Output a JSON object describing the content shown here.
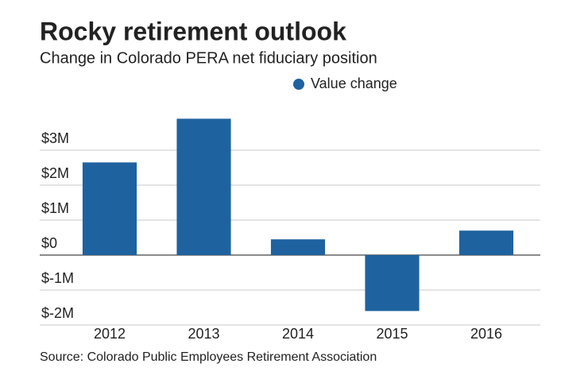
{
  "chart_data": {
    "type": "bar",
    "title": "Rocky retirement outlook",
    "subtitle": "Change in Colorado PERA net fiduciary position",
    "source": "Source: Colorado Public Employees Retirement Association",
    "categories": [
      "2012",
      "2013",
      "2014",
      "2015",
      "2016"
    ],
    "series": [
      {
        "name": "Value change",
        "color": "#1f62a0",
        "values": [
          2650000,
          3900000,
          450000,
          -1600000,
          700000
        ]
      }
    ],
    "ylim": [
      -2000000,
      4000000
    ],
    "yticks": [
      {
        "value": -2000000,
        "label": "$-2M"
      },
      {
        "value": -1000000,
        "label": "$-1M"
      },
      {
        "value": 0,
        "label": "$0"
      },
      {
        "value": 1000000,
        "label": "$1M"
      },
      {
        "value": 2000000,
        "label": "$2M"
      },
      {
        "value": 3000000,
        "label": "$3M"
      }
    ],
    "grid": true,
    "legend": "top"
  }
}
